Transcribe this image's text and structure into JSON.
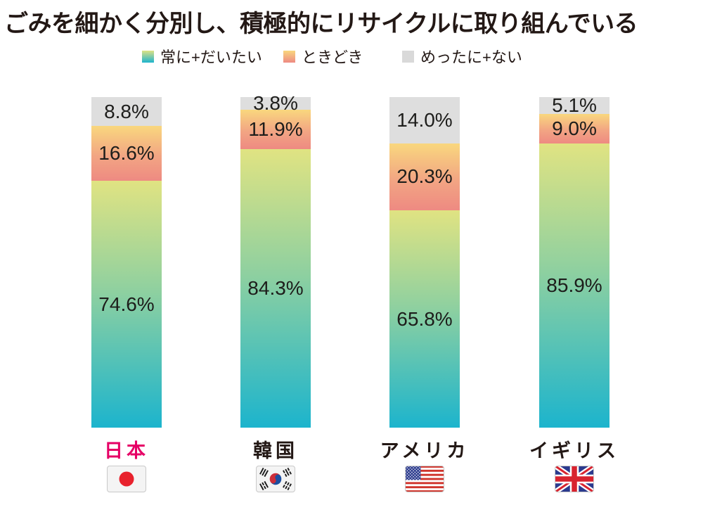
{
  "title": "ごみを細かく分別し、積極的にリサイクルに取り組んでいる",
  "legend": [
    {
      "label": "常に+だいたい",
      "swatch": "gradient-green-teal"
    },
    {
      "label": "ときどき",
      "swatch": "gradient-yellow-salmon"
    },
    {
      "label": "めったに+ない",
      "swatch": "gray"
    }
  ],
  "chart_data": {
    "type": "bar",
    "stacked": true,
    "orientation": "vertical",
    "unit": "%",
    "categories": [
      "日本",
      "韓国",
      "アメリカ",
      "イギリス"
    ],
    "series": [
      {
        "name": "常に+だいたい",
        "values": [
          74.6,
          84.3,
          65.8,
          85.9
        ]
      },
      {
        "name": "ときどき",
        "values": [
          16.6,
          11.9,
          20.3,
          9.0
        ]
      },
      {
        "name": "めったに+ない",
        "values": [
          8.8,
          3.8,
          14.0,
          5.1
        ]
      }
    ],
    "title": "ごみを細かく分別し、積極的にリサイクルに取り組んでいる",
    "xlabel": "",
    "ylabel": "",
    "ylim": [
      0,
      100
    ],
    "grid": false,
    "legend_position": "top",
    "value_labels": "inside-segments"
  },
  "bars": [
    {
      "country": "日本",
      "label_color": "#e60066",
      "flag": "japan",
      "segments": [
        {
          "series": "めったに+ない",
          "display": "8.8%",
          "value": 8.8
        },
        {
          "series": "ときどき",
          "display": "16.6%",
          "value": 16.6
        },
        {
          "series": "常に+だいたい",
          "display": "74.6%",
          "value": 74.6
        }
      ]
    },
    {
      "country": "韓国",
      "label_color": "#231815",
      "flag": "south-korea",
      "segments": [
        {
          "series": "めったに+ない",
          "display": "3.8%",
          "value": 3.8
        },
        {
          "series": "ときどき",
          "display": "11.9%",
          "value": 11.9
        },
        {
          "series": "常に+だいたい",
          "display": "84.3%",
          "value": 84.3
        }
      ]
    },
    {
      "country": "アメリカ",
      "label_color": "#231815",
      "flag": "usa",
      "segments": [
        {
          "series": "めったに+ない",
          "display": "14.0%",
          "value": 14.0
        },
        {
          "series": "ときどき",
          "display": "20.3%",
          "value": 20.3
        },
        {
          "series": "常に+だいたい",
          "display": "65.8%",
          "value": 65.8
        }
      ]
    },
    {
      "country": "イギリス",
      "label_color": "#231815",
      "flag": "uk",
      "segments": [
        {
          "series": "めったに+ない",
          "display": "5.1%",
          "value": 5.1
        },
        {
          "series": "ときどき",
          "display": "9.0%",
          "value": 9.0
        },
        {
          "series": "常に+だいたい",
          "display": "85.9%",
          "value": 85.9
        }
      ]
    }
  ],
  "colors": {
    "title_text": "#231815",
    "always_gradient_top": "#e0e382",
    "always_gradient_bottom": "#1cb4cd",
    "sometimes_gradient_top": "#f9d77e",
    "sometimes_gradient_bottom": "#ee8a82",
    "never_gray": "#dedede",
    "japan_highlight": "#e60066",
    "background": "#ffffff"
  }
}
